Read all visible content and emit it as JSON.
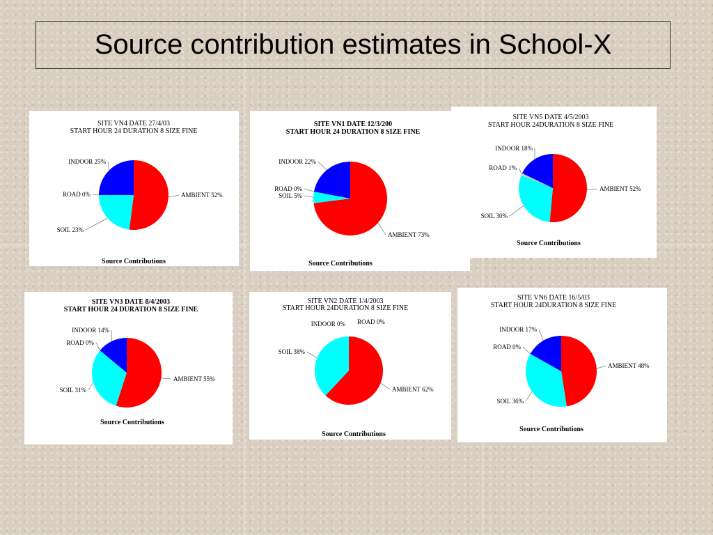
{
  "slide": {
    "title": "Source contribution estimates in School-X"
  },
  "chart_data": [
    {
      "type": "pie",
      "header_line1": "SITE VN4          DATE 27/4/03",
      "header_line2": "START HOUR 24 DURATION 8   SIZE FINE",
      "caption": "Source Contributions",
      "slices": [
        {
          "name": "AMBIENT",
          "value": 52,
          "color": "#ff0000",
          "label": "AMBIENT 52%"
        },
        {
          "name": "SOIL",
          "value": 23,
          "color": "#00ffff",
          "label": "SOIL    23%"
        },
        {
          "name": "ROAD",
          "value": 0,
          "color": "#ffffff",
          "label": "ROAD    0%"
        },
        {
          "name": "INDOOR",
          "value": 25,
          "color": "#0000ff",
          "label": "INDOOR  25%"
        }
      ]
    },
    {
      "type": "pie",
      "header_line1": "SITE VN1          DATE 12/3/200",
      "header_line2": "START HOUR 24 DURATION 8   SIZE FINE",
      "caption": "Source Contributions",
      "slices": [
        {
          "name": "AMBIENT",
          "value": 73,
          "color": "#ff0000",
          "label": "AMBIENT 73%"
        },
        {
          "name": "SOIL",
          "value": 5,
          "color": "#00ffff",
          "label": "SOIL     5%"
        },
        {
          "name": "ROAD",
          "value": 0,
          "color": "#ffffff",
          "label": "ROAD     0%"
        },
        {
          "name": "INDOOR",
          "value": 22,
          "color": "#0000ff",
          "label": "INDOOR 22%"
        }
      ]
    },
    {
      "type": "pie",
      "header_line1": "SITE VN5          DATE 4/5/2003",
      "header_line2": "START HOUR 24DURATION 8   SIZE FINE",
      "caption": "Source Contributions",
      "slices": [
        {
          "name": "AMBIENT",
          "value": 52,
          "color": "#ff0000",
          "label": "AMBIENT 52%"
        },
        {
          "name": "SOIL",
          "value": 30,
          "color": "#00ffff",
          "label": "SOIL    30%"
        },
        {
          "name": "ROAD",
          "value": 1,
          "color": "#c8c8c8",
          "label": "ROAD     1%"
        },
        {
          "name": "INDOOR",
          "value": 18,
          "color": "#0000ff",
          "label": "INDOOR 18%"
        }
      ]
    },
    {
      "type": "pie",
      "header_line1": "SITE VN3          DATE 8/4/2003",
      "header_line2": "START HOUR 24 DURATION 8   SIZE FINE",
      "caption": "Source Contributions",
      "slices": [
        {
          "name": "AMBIENT",
          "value": 55,
          "color": "#ff0000",
          "label": "AMBIENT 55%"
        },
        {
          "name": "SOIL",
          "value": 31,
          "color": "#00ffff",
          "label": "SOIL    31%"
        },
        {
          "name": "ROAD",
          "value": 0,
          "color": "#ffffff",
          "label": "ROAD     0%"
        },
        {
          "name": "INDOOR",
          "value": 14,
          "color": "#0000ff",
          "label": "INDOOR 14%"
        }
      ]
    },
    {
      "type": "pie",
      "header_line1": "SITE VN2          DATE 1/4/2003",
      "header_line2": "START HOUR 24DURATION 8   SIZE FINE",
      "caption": "Source Contributions",
      "slices": [
        {
          "name": "AMBIENT",
          "value": 62,
          "color": "#ff0000",
          "label": "AMBIENT 62%"
        },
        {
          "name": "SOIL",
          "value": 38,
          "color": "#00ffff",
          "label": "SOIL    38%"
        },
        {
          "name": "ROAD",
          "value": 0,
          "color": "#ffffff",
          "label": "ROAD     0%"
        },
        {
          "name": "INDOOR",
          "value": 0,
          "color": "#0000ff",
          "label": "INDOOR   0%"
        }
      ]
    },
    {
      "type": "pie",
      "header_line1": "SITE VN6          DATE 16/5/03",
      "header_line2": "START HOUR 24DURATION 8   SIZE FINE",
      "caption": "Source Contributions",
      "slices": [
        {
          "name": "AMBIENT",
          "value": 48,
          "color": "#ff0000",
          "label": "AMBIENT 48%"
        },
        {
          "name": "SOIL",
          "value": 36,
          "color": "#00ffff",
          "label": "SOIL    36%"
        },
        {
          "name": "ROAD",
          "value": 0,
          "color": "#ffffff",
          "label": "ROAD     0%"
        },
        {
          "name": "INDOOR",
          "value": 17,
          "color": "#0000ff",
          "label": "INDOOR 17%"
        }
      ]
    }
  ]
}
